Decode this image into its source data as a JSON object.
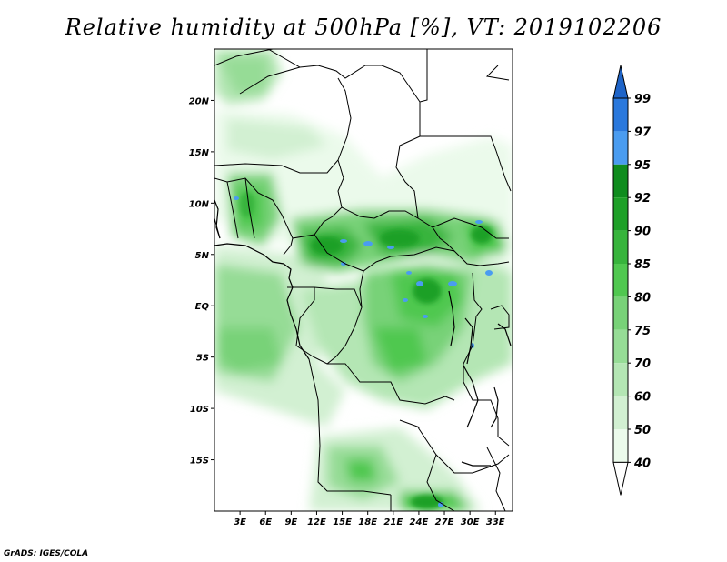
{
  "title": "Relative humidity at 500hPa [%], VT: 2019102206",
  "credit": "GrADS: IGES/COLA",
  "map": {
    "lon_range": [
      0,
      35
    ],
    "lat_range": [
      -20,
      25
    ],
    "lat_ticks": [
      "20N",
      "15N",
      "10N",
      "5N",
      "EQ",
      "5S",
      "10S",
      "15S"
    ],
    "lon_ticks": [
      "3E",
      "6E",
      "9E",
      "12E",
      "15E",
      "18E",
      "21E",
      "24E",
      "27E",
      "30E",
      "33E"
    ]
  },
  "colorbar": {
    "levels": [
      "99",
      "97",
      "95",
      "92",
      "90",
      "85",
      "80",
      "75",
      "70",
      "60",
      "50",
      "40"
    ],
    "colors": {
      "above_99": "#1e64c8",
      "97_99": "#2a78dc",
      "95_97": "#4a9cf0",
      "92_95": "#0f8c1e",
      "90_92": "#1ea028",
      "85_90": "#37b43c",
      "80_85": "#50c850",
      "75_80": "#78d278",
      "70_75": "#96dc96",
      "60_70": "#b4e6b4",
      "50_60": "#d2f0d2",
      "40_50": "#ebfaeb",
      "below_40": "#ffffff"
    }
  }
}
